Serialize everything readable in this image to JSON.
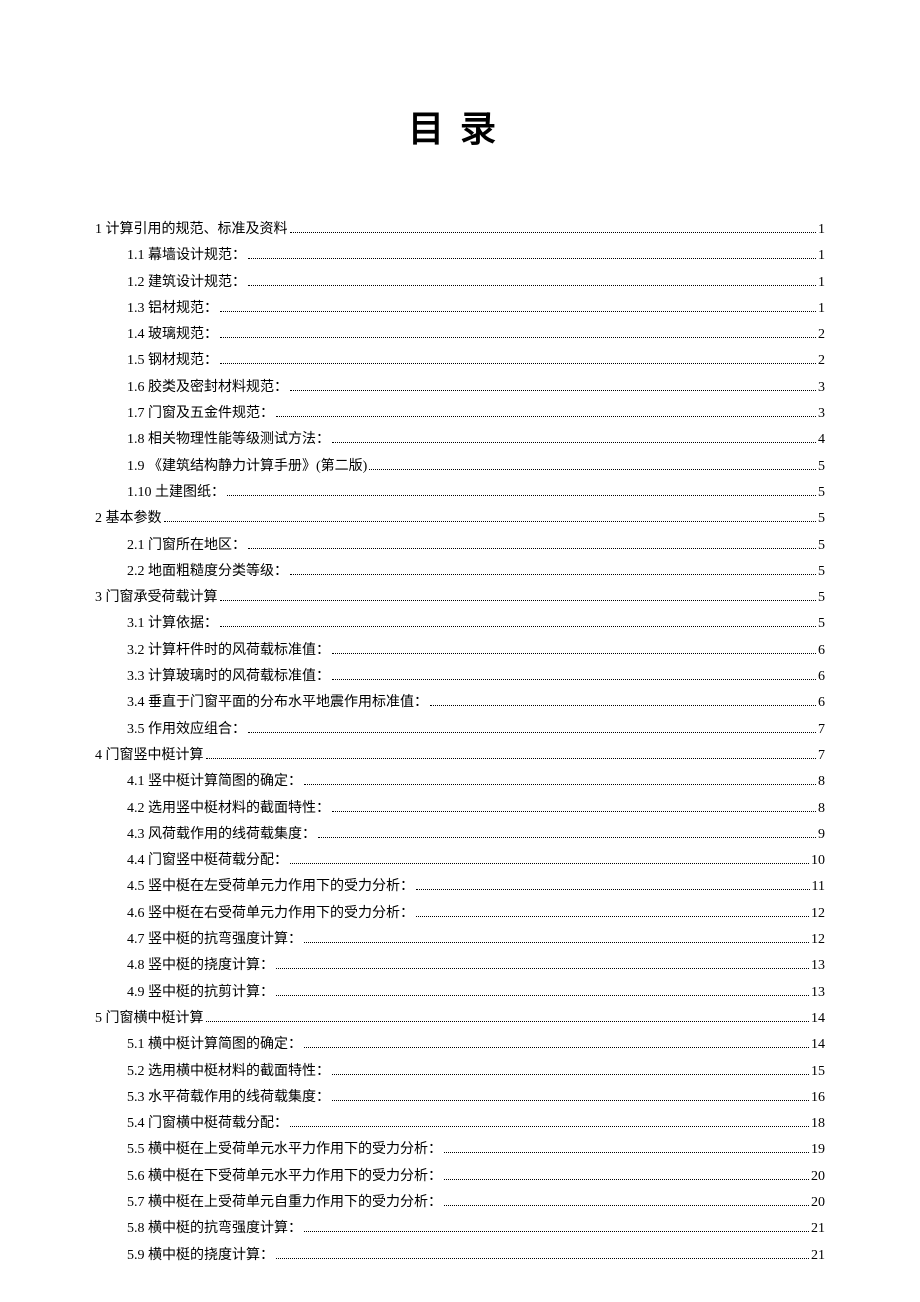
{
  "title": "目录",
  "typography": {
    "title_fontsize": 36,
    "title_letter_spacing": 16,
    "body_fontsize": 14,
    "title_font": "SimHei",
    "body_font": "SimSun"
  },
  "colors": {
    "background": "#ffffff",
    "text": "#000000"
  },
  "toc": [
    {
      "level": 1,
      "num": "1",
      "title": "计算引用的规范、标准及资料",
      "page": "1"
    },
    {
      "level": 2,
      "num": "1.1",
      "title": "幕墙设计规范：",
      "page": "1"
    },
    {
      "level": 2,
      "num": "1.2",
      "title": "建筑设计规范：",
      "page": "1"
    },
    {
      "level": 2,
      "num": "1.3",
      "title": "铝材规范：",
      "page": "1"
    },
    {
      "level": 2,
      "num": "1.4",
      "title": "玻璃规范：",
      "page": "2"
    },
    {
      "level": 2,
      "num": "1.5",
      "title": "钢材规范：",
      "page": "2"
    },
    {
      "level": 2,
      "num": "1.6",
      "title": "胶类及密封材料规范：",
      "page": "3"
    },
    {
      "level": 2,
      "num": "1.7",
      "title": "门窗及五金件规范：",
      "page": "3"
    },
    {
      "level": 2,
      "num": "1.8",
      "title": "相关物理性能等级测试方法：",
      "page": "4"
    },
    {
      "level": 2,
      "num": "1.9",
      "title": "《建筑结构静力计算手册》(第二版)",
      "page": "5"
    },
    {
      "level": 2,
      "num": "1.10",
      "title": "土建图纸：",
      "page": "5"
    },
    {
      "level": 1,
      "num": "2",
      "title": "基本参数",
      "page": "5"
    },
    {
      "level": 2,
      "num": "2.1",
      "title": "门窗所在地区：",
      "page": "5"
    },
    {
      "level": 2,
      "num": "2.2",
      "title": "地面粗糙度分类等级：",
      "page": "5"
    },
    {
      "level": 1,
      "num": "3",
      "title": "门窗承受荷载计算",
      "page": "5"
    },
    {
      "level": 2,
      "num": "3.1",
      "title": "计算依据：",
      "page": "5"
    },
    {
      "level": 2,
      "num": "3.2",
      "title": "计算杆件时的风荷载标准值：",
      "page": "6"
    },
    {
      "level": 2,
      "num": "3.3",
      "title": "计算玻璃时的风荷载标准值：",
      "page": "6"
    },
    {
      "level": 2,
      "num": "3.4",
      "title": "垂直于门窗平面的分布水平地震作用标准值：",
      "page": "6"
    },
    {
      "level": 2,
      "num": "3.5",
      "title": "作用效应组合：",
      "page": "7"
    },
    {
      "level": 1,
      "num": "4",
      "title": "门窗竖中梃计算",
      "page": "7"
    },
    {
      "level": 2,
      "num": "4.1",
      "title": "竖中梃计算简图的确定：",
      "page": "8"
    },
    {
      "level": 2,
      "num": "4.2",
      "title": "选用竖中梃材料的截面特性：",
      "page": "8"
    },
    {
      "level": 2,
      "num": "4.3",
      "title": "风荷载作用的线荷载集度：",
      "page": "9"
    },
    {
      "level": 2,
      "num": "4.4",
      "title": "门窗竖中梃荷载分配：",
      "page": "10"
    },
    {
      "level": 2,
      "num": "4.5",
      "title": "竖中梃在左受荷单元力作用下的受力分析：",
      "page": "11"
    },
    {
      "level": 2,
      "num": "4.6",
      "title": "竖中梃在右受荷单元力作用下的受力分析：",
      "page": "12"
    },
    {
      "level": 2,
      "num": "4.7",
      "title": "竖中梃的抗弯强度计算：",
      "page": "12"
    },
    {
      "level": 2,
      "num": "4.8",
      "title": "竖中梃的挠度计算：",
      "page": "13"
    },
    {
      "level": 2,
      "num": "4.9",
      "title": "竖中梃的抗剪计算：",
      "page": "13"
    },
    {
      "level": 1,
      "num": "5",
      "title": "门窗横中梃计算",
      "page": "14"
    },
    {
      "level": 2,
      "num": "5.1",
      "title": "横中梃计算简图的确定：",
      "page": "14"
    },
    {
      "level": 2,
      "num": "5.2",
      "title": "选用横中梃材料的截面特性：",
      "page": "15"
    },
    {
      "level": 2,
      "num": "5.3",
      "title": "水平荷载作用的线荷载集度：",
      "page": "16"
    },
    {
      "level": 2,
      "num": "5.4",
      "title": "门窗横中梃荷载分配：",
      "page": "18"
    },
    {
      "level": 2,
      "num": "5.5",
      "title": "横中梃在上受荷单元水平力作用下的受力分析：",
      "page": "19"
    },
    {
      "level": 2,
      "num": "5.6",
      "title": "横中梃在下受荷单元水平力作用下的受力分析：",
      "page": "20"
    },
    {
      "level": 2,
      "num": "5.7",
      "title": "横中梃在上受荷单元自重力作用下的受力分析：",
      "page": "20"
    },
    {
      "level": 2,
      "num": "5.8",
      "title": "横中梃的抗弯强度计算：",
      "page": "21"
    },
    {
      "level": 2,
      "num": "5.9",
      "title": "横中梃的挠度计算：",
      "page": "21"
    }
  ]
}
